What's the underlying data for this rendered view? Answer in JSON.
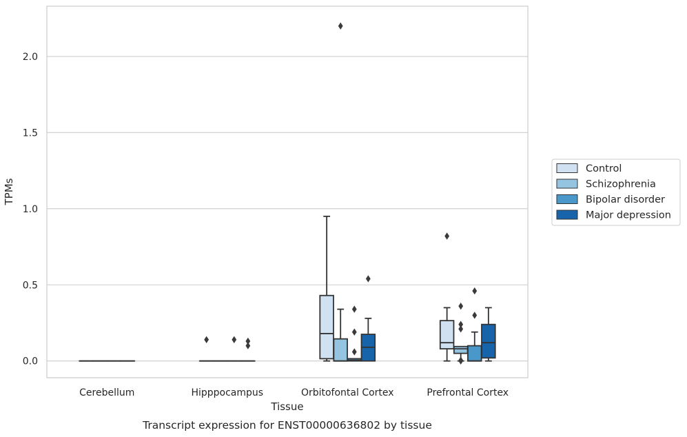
{
  "chart_data": {
    "type": "boxplot",
    "title": "",
    "caption": "Transcript expression for ENST00000636802 by tissue",
    "xlabel": "Tissue",
    "ylabel": "TPMs",
    "ylim": [
      -0.11,
      2.33
    ],
    "yticks": [
      0.0,
      0.5,
      1.0,
      1.5,
      2.0
    ],
    "ytick_labels": [
      "0.0",
      "0.5",
      "1.0",
      "1.5",
      "2.0"
    ],
    "grid": "horizontal",
    "legend_position": "right",
    "categories": [
      "Cerebellum",
      "Hipppocampus",
      "Orbitofontal Cortex",
      "Prefrontal Cortex"
    ],
    "series": [
      {
        "name": "Control",
        "color": "#d0e1f2",
        "boxes": [
          {
            "q1": 0,
            "median": 0,
            "q3": 0,
            "low": 0,
            "high": 0,
            "outliers": []
          },
          {
            "q1": 0,
            "median": 0,
            "q3": 0,
            "low": 0,
            "high": 0,
            "outliers": [
              0.14
            ]
          },
          {
            "q1": 0.015,
            "median": 0.18,
            "q3": 0.43,
            "low": 0.0,
            "high": 0.95,
            "outliers": []
          },
          {
            "q1": 0.08,
            "median": 0.12,
            "q3": 0.265,
            "low": 0.0,
            "high": 0.35,
            "outliers": [
              0.82
            ]
          }
        ]
      },
      {
        "name": "Schizophrenia",
        "color": "#94c4df",
        "boxes": [
          {
            "q1": 0,
            "median": 0,
            "q3": 0,
            "low": 0,
            "high": 0,
            "outliers": []
          },
          {
            "q1": 0,
            "median": 0,
            "q3": 0,
            "low": 0,
            "high": 0,
            "outliers": []
          },
          {
            "q1": 0.0,
            "median": 0.0,
            "q3": 0.145,
            "low": 0.0,
            "high": 0.34,
            "outliers": [
              2.2
            ]
          },
          {
            "q1": 0.05,
            "median": 0.08,
            "q3": 0.095,
            "low": 0.0,
            "high": 0.095,
            "outliers": [
              0.36,
              0.24,
              0.21,
              0.005,
              0.0
            ]
          }
        ]
      },
      {
        "name": "Bipolar disorder",
        "color": "#4a98c9",
        "boxes": [
          {
            "q1": 0,
            "median": 0,
            "q3": 0,
            "low": 0,
            "high": 0,
            "outliers": []
          },
          {
            "q1": 0,
            "median": 0,
            "q3": 0,
            "low": 0,
            "high": 0,
            "outliers": [
              0.14
            ]
          },
          {
            "q1": 0.0,
            "median": 0.005,
            "q3": 0.015,
            "low": 0.0,
            "high": 0.015,
            "outliers": [
              0.34,
              0.19,
              0.06
            ]
          },
          {
            "q1": 0.0,
            "median": 0.0,
            "q3": 0.1,
            "low": 0.0,
            "high": 0.19,
            "outliers": [
              0.46,
              0.3
            ]
          }
        ]
      },
      {
        "name": "Major depression",
        "color": "#1764ab",
        "boxes": [
          {
            "q1": 0,
            "median": 0,
            "q3": 0,
            "low": 0,
            "high": 0,
            "outliers": []
          },
          {
            "q1": 0,
            "median": 0,
            "q3": 0,
            "low": 0,
            "high": 0,
            "outliers": [
              0.13,
              0.1
            ]
          },
          {
            "q1": 0.0,
            "median": 0.09,
            "q3": 0.175,
            "low": 0.0,
            "high": 0.28,
            "outliers": [
              0.54
            ]
          },
          {
            "q1": 0.02,
            "median": 0.12,
            "q3": 0.24,
            "low": 0.0,
            "high": 0.35,
            "outliers": []
          }
        ]
      }
    ]
  }
}
